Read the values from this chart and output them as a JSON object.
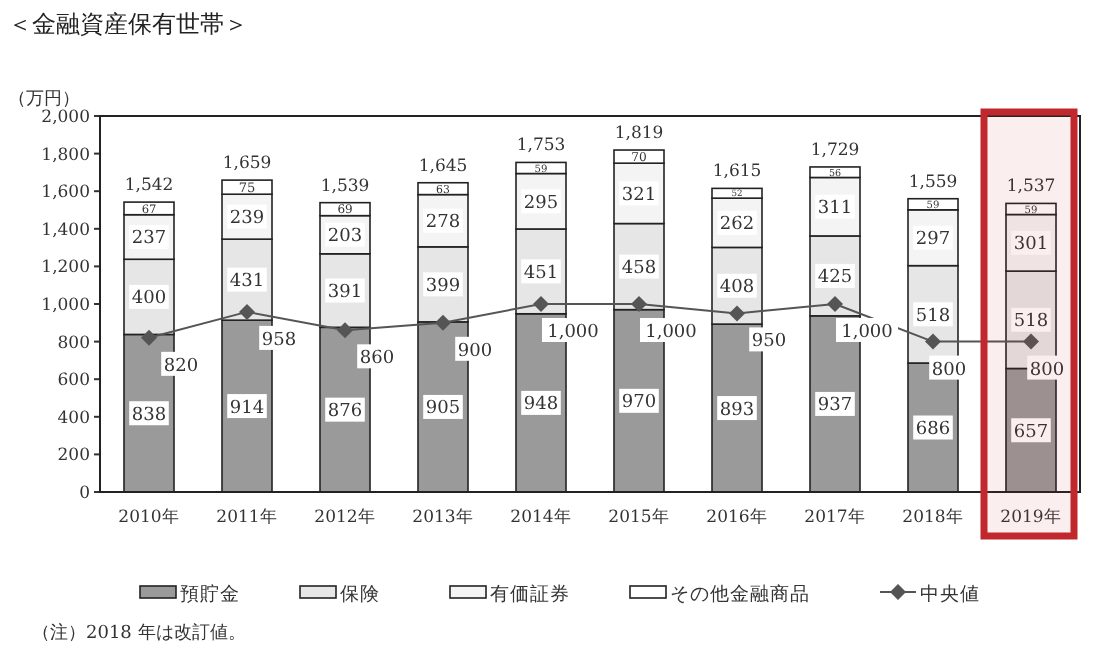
{
  "chart_data": {
    "type": "bar",
    "stacked": true,
    "title": "＜金融資産保有世帯＞",
    "ylabel": "（万円）",
    "categories": [
      "2010年",
      "2011年",
      "2012年",
      "2013年",
      "2014年",
      "2015年",
      "2016年",
      "2017年",
      "2018年",
      "2019年"
    ],
    "series": [
      {
        "name": "預貯金",
        "color": "#9a9a9a",
        "values": [
          838,
          914,
          876,
          905,
          948,
          970,
          893,
          937,
          686,
          657
        ]
      },
      {
        "name": "保険",
        "color": "#e6e6e6",
        "values": [
          400,
          431,
          391,
          399,
          451,
          458,
          408,
          425,
          518,
          518
        ]
      },
      {
        "name": "有価証券",
        "color": "#f4f4f4",
        "values": [
          237,
          239,
          203,
          278,
          295,
          321,
          262,
          311,
          297,
          301
        ]
      },
      {
        "name": "その他金融商品",
        "color": "#ffffff",
        "values": [
          67,
          75,
          69,
          63,
          59,
          70,
          52,
          56,
          59,
          59
        ]
      },
      {
        "name": "中央値",
        "type": "line",
        "color": "#555555",
        "marker": "diamond",
        "values": [
          820,
          958,
          860,
          900,
          1000,
          1000,
          950,
          1000,
          800,
          800
        ],
        "value_labels": [
          "820",
          "958",
          "860",
          "900",
          "1,000",
          "1,000",
          "950",
          "1,000",
          "800",
          "800"
        ]
      }
    ],
    "data_labels": true,
    "totals": [
      "1,542",
      "1,659",
      "1,539",
      "1,645",
      "1,753",
      "1,819",
      "1,615",
      "1,729",
      "1,559",
      "1,537"
    ],
    "ylim": [
      0,
      2000
    ],
    "yticks": [
      0,
      200,
      400,
      600,
      800,
      {
        "value": 1000,
        "label": "1,000"
      },
      {
        "value": 1200,
        "label": "1,200"
      },
      {
        "value": 1400,
        "label": "1,400"
      },
      {
        "value": 1600,
        "label": "1,600"
      },
      {
        "value": 1800,
        "label": "1,800"
      },
      {
        "value": 2000,
        "label": "2,000"
      }
    ],
    "bands": [
      {
        "axis": "x",
        "from": "2019年",
        "to": "2019年",
        "color": "#c0282d"
      }
    ],
    "legend": "bottom",
    "grid": false,
    "annotations": [
      "（注）2018 年は改訂値。"
    ]
  }
}
